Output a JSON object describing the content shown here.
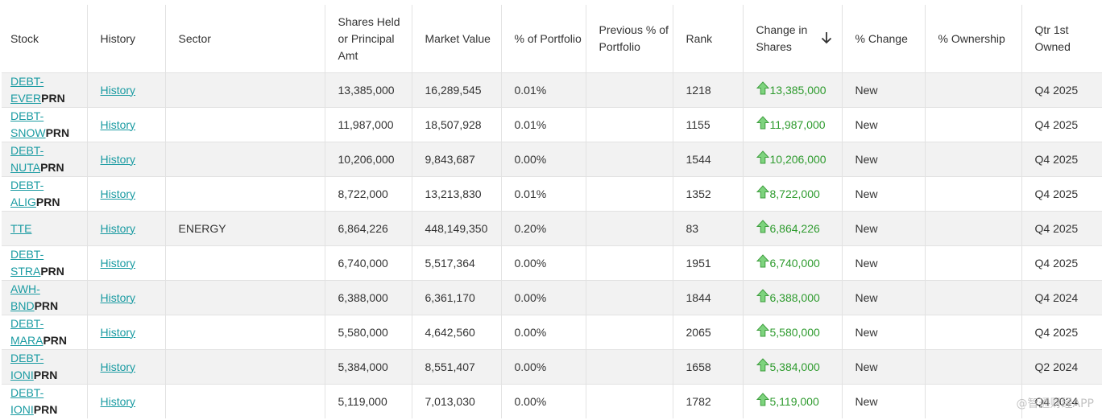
{
  "columns": {
    "stock": "Stock",
    "history": "History",
    "sector": "Sector",
    "shares": "Shares Held or Principal Amt",
    "market_value": "Market Value",
    "pct_portfolio": "% of Portfolio",
    "prev_pct": "Previous % of Portfolio",
    "rank": "Rank",
    "change": "Change in Shares",
    "pct_change": "% Change",
    "pct_ownership": "% Ownership",
    "qtr": "Qtr 1st Owned"
  },
  "sort": {
    "column": "change",
    "direction": "desc",
    "icon": "arrow-down-icon"
  },
  "change_icon": "arrow-up-icon",
  "colors": {
    "link": "#1a9ba2",
    "positive": "#2e9b2e",
    "row_alt": "#f2f2f2"
  },
  "rows": [
    {
      "stock_line1": "DEBT-",
      "stock_line2": "EVER",
      "suffix": "PRN",
      "history": "History",
      "sector": "",
      "shares": "13,385,000",
      "market_value": "16,289,545",
      "pct_portfolio": "0.01%",
      "prev_pct": "",
      "rank": "1218",
      "change": "13,385,000",
      "pct_change": "New",
      "pct_ownership": "",
      "qtr": "Q4 2025"
    },
    {
      "stock_line1": "DEBT-",
      "stock_line2": "SNOW",
      "suffix": "PRN",
      "history": "History",
      "sector": "",
      "shares": "11,987,000",
      "market_value": "18,507,928",
      "pct_portfolio": "0.01%",
      "prev_pct": "",
      "rank": "1155",
      "change": "11,987,000",
      "pct_change": "New",
      "pct_ownership": "",
      "qtr": "Q4 2025"
    },
    {
      "stock_line1": "DEBT-",
      "stock_line2": "NUTA",
      "suffix": "PRN",
      "history": "History",
      "sector": "",
      "shares": "10,206,000",
      "market_value": "9,843,687",
      "pct_portfolio": "0.00%",
      "prev_pct": "",
      "rank": "1544",
      "change": "10,206,000",
      "pct_change": "New",
      "pct_ownership": "",
      "qtr": "Q4 2025"
    },
    {
      "stock_line1": "DEBT-",
      "stock_line2": "ALIG",
      "suffix": "PRN",
      "history": "History",
      "sector": "",
      "shares": "8,722,000",
      "market_value": "13,213,830",
      "pct_portfolio": "0.01%",
      "prev_pct": "",
      "rank": "1352",
      "change": "8,722,000",
      "pct_change": "New",
      "pct_ownership": "",
      "qtr": "Q4 2025"
    },
    {
      "stock_line1": "TTE",
      "stock_line2": "",
      "suffix": "",
      "history": "History",
      "sector": "ENERGY",
      "shares": "6,864,226",
      "market_value": "448,149,350",
      "pct_portfolio": "0.20%",
      "prev_pct": "",
      "rank": "83",
      "change": "6,864,226",
      "pct_change": "New",
      "pct_ownership": "",
      "qtr": "Q4 2025"
    },
    {
      "stock_line1": "DEBT-",
      "stock_line2": "STRA",
      "suffix": "PRN",
      "history": "History",
      "sector": "",
      "shares": "6,740,000",
      "market_value": "5,517,364",
      "pct_portfolio": "0.00%",
      "prev_pct": "",
      "rank": "1951",
      "change": "6,740,000",
      "pct_change": "New",
      "pct_ownership": "",
      "qtr": "Q4 2025"
    },
    {
      "stock_line1": "AWH-",
      "stock_line2": "BND",
      "suffix": "PRN",
      "history": "History",
      "sector": "",
      "shares": "6,388,000",
      "market_value": "6,361,170",
      "pct_portfolio": "0.00%",
      "prev_pct": "",
      "rank": "1844",
      "change": "6,388,000",
      "pct_change": "New",
      "pct_ownership": "",
      "qtr": "Q4 2024"
    },
    {
      "stock_line1": "DEBT-",
      "stock_line2": "MARA",
      "suffix": "PRN",
      "history": "History",
      "sector": "",
      "shares": "5,580,000",
      "market_value": "4,642,560",
      "pct_portfolio": "0.00%",
      "prev_pct": "",
      "rank": "2065",
      "change": "5,580,000",
      "pct_change": "New",
      "pct_ownership": "",
      "qtr": "Q4 2025"
    },
    {
      "stock_line1": "DEBT-",
      "stock_line2": "IONI",
      "suffix": "PRN",
      "history": "History",
      "sector": "",
      "shares": "5,384,000",
      "market_value": "8,551,407",
      "pct_portfolio": "0.00%",
      "prev_pct": "",
      "rank": "1658",
      "change": "5,384,000",
      "pct_change": "New",
      "pct_ownership": "",
      "qtr": "Q2 2024"
    },
    {
      "stock_line1": "DEBT-",
      "stock_line2": "IONI",
      "suffix": "PRN",
      "history": "History",
      "sector": "",
      "shares": "5,119,000",
      "market_value": "7,013,030",
      "pct_portfolio": "0.00%",
      "prev_pct": "",
      "rank": "1782",
      "change": "5,119,000",
      "pct_change": "New",
      "pct_ownership": "",
      "qtr": "Q4 2024"
    }
  ],
  "watermark": "@智通财经APP"
}
